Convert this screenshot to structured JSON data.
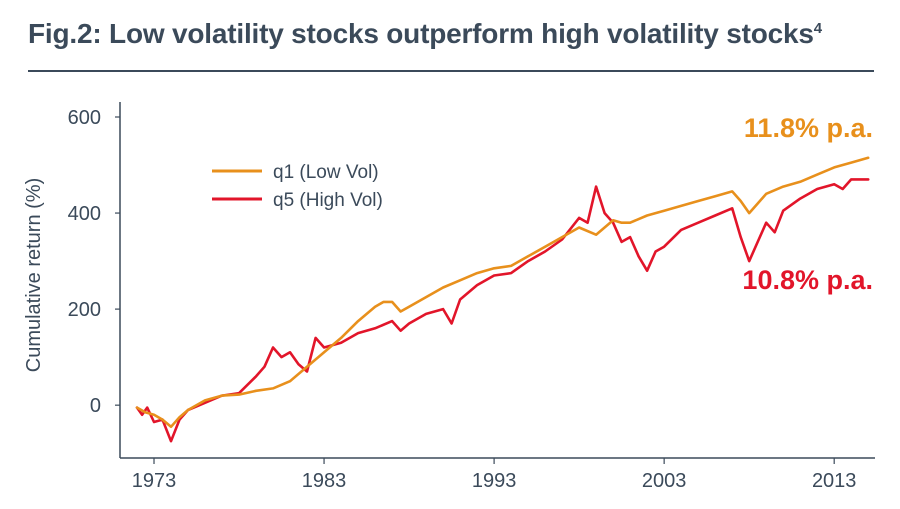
{
  "title": "Fig.2: Low volatility stocks outperform high volatility stocks",
  "title_sup": "4",
  "chart_data": {
    "type": "line",
    "title": "Fig.2: Low volatility stocks outperform high volatility stocks",
    "xlabel": "",
    "ylabel": "Cumulative return (%)",
    "xlim": [
      1971,
      2015.4
    ],
    "ylim": [
      -110,
      600
    ],
    "yticks": [
      0,
      200,
      400,
      600
    ],
    "xticks": [
      1973,
      1983,
      1993,
      2003,
      2013
    ],
    "legend_position": "upper-left",
    "series": [
      {
        "name": "q1 (Low Vol)",
        "color": "#E8901C",
        "x": [
          1972,
          1972.5,
          1973,
          1973.5,
          1974,
          1974.5,
          1975,
          1976,
          1977,
          1978,
          1979,
          1980,
          1981,
          1982,
          1983,
          1984,
          1985,
          1986,
          1986.5,
          1987,
          1987.5,
          1988,
          1989,
          1990,
          1991,
          1992,
          1993,
          1994,
          1995,
          1996,
          1997,
          1998,
          1999,
          2000,
          2000.5,
          2001,
          2002,
          2003,
          2004,
          2005,
          2006,
          2007,
          2007.5,
          2008,
          2008.5,
          2009,
          2010,
          2011,
          2012,
          2013,
          2014,
          2015
        ],
        "values": [
          -5,
          -15,
          -20,
          -30,
          -45,
          -25,
          -10,
          10,
          20,
          22,
          30,
          35,
          50,
          80,
          110,
          140,
          175,
          205,
          215,
          215,
          195,
          205,
          225,
          245,
          260,
          275,
          285,
          290,
          310,
          330,
          350,
          370,
          355,
          385,
          380,
          380,
          395,
          405,
          415,
          425,
          435,
          445,
          425,
          400,
          420,
          440,
          455,
          465,
          480,
          495,
          505,
          515
        ]
      },
      {
        "name": "q5 (High Vol)",
        "color": "#E2152A",
        "x": [
          1972,
          1972.3,
          1972.6,
          1973,
          1973.5,
          1974,
          1974.5,
          1975,
          1976,
          1977,
          1978,
          1979,
          1979.5,
          1980,
          1980.5,
          1981,
          1981.5,
          1982,
          1982.5,
          1983,
          1984,
          1985,
          1986,
          1987,
          1987.5,
          1988,
          1989,
          1990,
          1990.5,
          1991,
          1992,
          1993,
          1994,
          1995,
          1996,
          1997,
          1998,
          1998.5,
          1999,
          1999.5,
          2000,
          2000.5,
          2001,
          2001.5,
          2002,
          2002.5,
          2003,
          2004,
          2005,
          2006,
          2007,
          2007.5,
          2008,
          2008.5,
          2009,
          2009.5,
          2010,
          2011,
          2012,
          2013,
          2013.5,
          2014,
          2015
        ],
        "values": [
          -5,
          -20,
          -5,
          -35,
          -30,
          -75,
          -30,
          -10,
          5,
          20,
          25,
          60,
          80,
          120,
          100,
          110,
          85,
          70,
          140,
          120,
          130,
          150,
          160,
          175,
          155,
          170,
          190,
          200,
          170,
          220,
          250,
          270,
          275,
          300,
          320,
          345,
          390,
          380,
          455,
          400,
          380,
          340,
          350,
          310,
          280,
          320,
          330,
          365,
          380,
          395,
          410,
          350,
          300,
          340,
          380,
          360,
          405,
          430,
          450,
          460,
          450,
          470,
          470
        ]
      }
    ],
    "annotations": [
      {
        "text": "11.8% p.a.",
        "color": "#E8901C",
        "series": "q1 (Low Vol)"
      },
      {
        "text": "10.8% p.a.",
        "color": "#E2152A",
        "series": "q5 (High Vol)"
      }
    ]
  }
}
